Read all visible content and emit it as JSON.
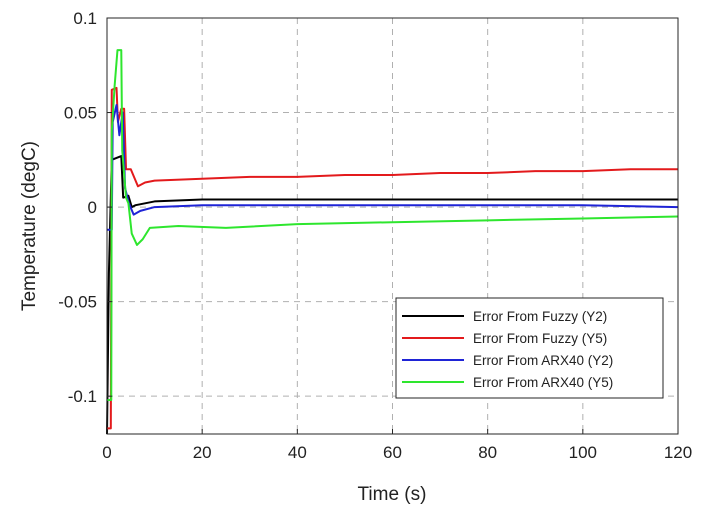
{
  "chart_data": {
    "type": "line",
    "title": "",
    "xlabel": "Time (s)",
    "ylabel": "Temperature (degC)",
    "xlim": [
      0,
      120
    ],
    "ylim": [
      -0.12,
      0.1
    ],
    "xticks": [
      0,
      20,
      40,
      60,
      80,
      100,
      120
    ],
    "xtick_labels": [
      "0",
      "20",
      "40",
      "60",
      "80",
      "100",
      "120"
    ],
    "yticks": [
      -0.1,
      -0.05,
      0,
      0.05,
      0.1
    ],
    "ytick_labels": [
      "-0.1",
      "-0.05",
      "0",
      "0.05",
      "0.1"
    ],
    "grid": true,
    "grid_style": "dashed",
    "legend_position": "lower-right",
    "series": [
      {
        "name": "Error From Fuzzy (Y2)",
        "color": "#000000",
        "points": [
          [
            0,
            -0.12
          ],
          [
            0.4,
            -0.035
          ],
          [
            1.0,
            0.025
          ],
          [
            2.0,
            0.026
          ],
          [
            3.0,
            0.027
          ],
          [
            3.4,
            0.005
          ],
          [
            4.5,
            0.006
          ],
          [
            5.2,
            0.0
          ],
          [
            6.0,
            0.001
          ],
          [
            8.0,
            0.002
          ],
          [
            10,
            0.003
          ],
          [
            20,
            0.004
          ],
          [
            40,
            0.004
          ],
          [
            60,
            0.004
          ],
          [
            80,
            0.004
          ],
          [
            100,
            0.004
          ],
          [
            120,
            0.004
          ]
        ]
      },
      {
        "name": "Error From Fuzzy (Y5)",
        "color": "#e31a1c",
        "points": [
          [
            0,
            -0.117
          ],
          [
            0.8,
            -0.117
          ],
          [
            1.0,
            0.062
          ],
          [
            2.0,
            0.063
          ],
          [
            2.3,
            0.045
          ],
          [
            3.0,
            0.052
          ],
          [
            3.6,
            0.052
          ],
          [
            4.0,
            0.02
          ],
          [
            5.0,
            0.02
          ],
          [
            6.5,
            0.011
          ],
          [
            8.0,
            0.013
          ],
          [
            10,
            0.014
          ],
          [
            20,
            0.015
          ],
          [
            30,
            0.016
          ],
          [
            40,
            0.016
          ],
          [
            50,
            0.017
          ],
          [
            60,
            0.017
          ],
          [
            70,
            0.018
          ],
          [
            80,
            0.018
          ],
          [
            90,
            0.019
          ],
          [
            100,
            0.019
          ],
          [
            110,
            0.02
          ],
          [
            120,
            0.02
          ]
        ]
      },
      {
        "name": "Error From ARX40 (Y2)",
        "color": "#1f24d6",
        "points": [
          [
            0,
            -0.012
          ],
          [
            1.0,
            -0.012
          ],
          [
            1.2,
            0.045
          ],
          [
            2.0,
            0.054
          ],
          [
            2.6,
            0.038
          ],
          [
            3.3,
            0.05
          ],
          [
            3.8,
            0.01
          ],
          [
            4.6,
            0.002
          ],
          [
            5.6,
            -0.004
          ],
          [
            7.0,
            -0.002
          ],
          [
            10,
            0.0
          ],
          [
            20,
            0.001
          ],
          [
            40,
            0.001
          ],
          [
            60,
            0.001
          ],
          [
            80,
            0.001
          ],
          [
            100,
            0.001
          ],
          [
            120,
            0.0
          ]
        ]
      },
      {
        "name": "Error From ARX40 (Y5)",
        "color": "#2ee62e",
        "points": [
          [
            0,
            -0.102
          ],
          [
            0.9,
            -0.102
          ],
          [
            1.0,
            0.04
          ],
          [
            1.6,
            0.064
          ],
          [
            2.2,
            0.083
          ],
          [
            3.0,
            0.083
          ],
          [
            3.2,
            0.03
          ],
          [
            4.0,
            0.005
          ],
          [
            4.5,
            0.002
          ],
          [
            5.2,
            -0.014
          ],
          [
            6.3,
            -0.02
          ],
          [
            7.5,
            -0.017
          ],
          [
            9.0,
            -0.011
          ],
          [
            15,
            -0.01
          ],
          [
            25,
            -0.011
          ],
          [
            40,
            -0.009
          ],
          [
            60,
            -0.008
          ],
          [
            80,
            -0.007
          ],
          [
            100,
            -0.006
          ],
          [
            120,
            -0.005
          ]
        ]
      }
    ]
  }
}
